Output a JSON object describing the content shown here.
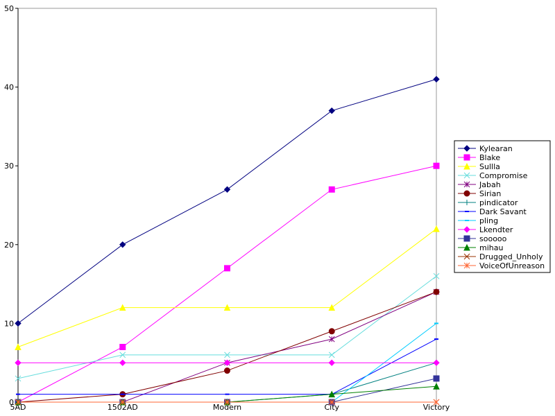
{
  "chart_data": {
    "type": "line",
    "title": "",
    "xlabel": "",
    "ylabel": "",
    "categories": [
      "5AD",
      "1502AD",
      "Modern",
      "City",
      "Victory"
    ],
    "ylim": [
      0,
      50
    ],
    "yticks": [
      0,
      10,
      20,
      30,
      40,
      50
    ],
    "grid": false,
    "legend_position": "right",
    "series": [
      {
        "name": "Kylearan",
        "color": "#000080",
        "marker": "diamond",
        "values": [
          10,
          20,
          27,
          37,
          41
        ]
      },
      {
        "name": "Blake",
        "color": "#ff00ff",
        "marker": "square",
        "values": [
          0,
          7,
          17,
          27,
          30
        ]
      },
      {
        "name": "Sullla",
        "color": "#ffff00",
        "marker": "triangle",
        "values": [
          7,
          12,
          12,
          12,
          22
        ]
      },
      {
        "name": "Compromise",
        "color": "#66dddd",
        "marker": "x",
        "values": [
          3,
          6,
          6,
          6,
          16
        ]
      },
      {
        "name": "Jabah",
        "color": "#800080",
        "marker": "star",
        "values": [
          0,
          0,
          5,
          8,
          14
        ]
      },
      {
        "name": "Sirian",
        "color": "#800000",
        "marker": "circle",
        "values": [
          0,
          1,
          4,
          9,
          14
        ]
      },
      {
        "name": "pindicator",
        "color": "#008080",
        "marker": "plus",
        "values": [
          0,
          0,
          0,
          1,
          5
        ]
      },
      {
        "name": "Dark Savant",
        "color": "#0000ff",
        "marker": "hdash",
        "values": [
          1,
          1,
          1,
          1,
          8
        ]
      },
      {
        "name": "pling",
        "color": "#00ccff",
        "marker": "hdash",
        "values": [
          0,
          0,
          0,
          0,
          10
        ]
      },
      {
        "name": "Lkendter",
        "color": "#ff00ff",
        "marker": "diamond",
        "values": [
          5,
          5,
          5,
          5,
          5
        ]
      },
      {
        "name": "sooooo",
        "color": "#333399",
        "marker": "square",
        "values": [
          0,
          0,
          0,
          0,
          3
        ]
      },
      {
        "name": "mihau",
        "color": "#008000",
        "marker": "triangle",
        "values": [
          0,
          0,
          0,
          1,
          2
        ]
      },
      {
        "name": "Drugged_Unholy",
        "color": "#993300",
        "marker": "x",
        "values": [
          0,
          0,
          0,
          0,
          0
        ]
      },
      {
        "name": "VoiceOfUnreason",
        "color": "#ff6633",
        "marker": "star",
        "values": [
          0,
          0,
          0,
          0,
          0
        ]
      }
    ]
  }
}
